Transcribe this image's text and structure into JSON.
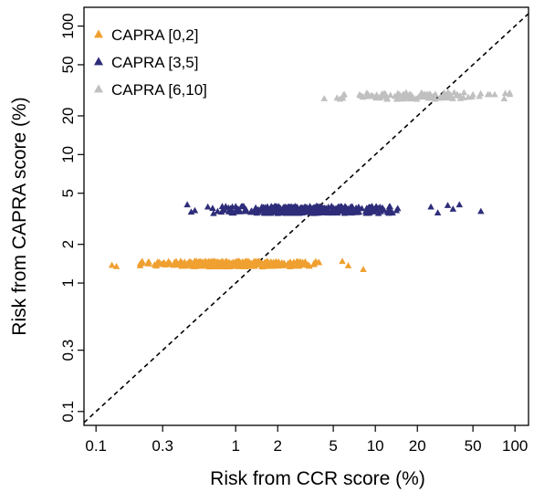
{
  "chart_data": {
    "type": "scatter",
    "xlabel": "Risk from CCR score (%)",
    "ylabel": "Risk from CAPRA score (%)",
    "xscale": "log",
    "yscale": "log",
    "xlim": [
      0.082,
      125
    ],
    "ylim": [
      0.078,
      140
    ],
    "x_ticks": [
      0.1,
      0.3,
      1,
      2,
      5,
      10,
      20,
      50,
      100
    ],
    "x_tick_labels": [
      "0.1",
      "0.3",
      "1",
      "2",
      "5",
      "10",
      "20",
      "50",
      "100"
    ],
    "y_ticks": [
      0.1,
      0.3,
      1,
      2,
      5,
      10,
      20,
      50,
      100
    ],
    "y_tick_labels": [
      "0.1",
      "0.3",
      "1",
      "2",
      "5",
      "10",
      "20",
      "50",
      "100"
    ],
    "reference_line": "y = x (dashed)",
    "legend_position": "top-left",
    "marker": "triangle",
    "series": [
      {
        "name": "CAPRA [0,2]",
        "color": "#F0A030",
        "x_range": [
          0.13,
          8.2
        ],
        "y_range": [
          1.3,
          1.5
        ],
        "y_center": 1.4,
        "dense_x_range": [
          0.2,
          4.0
        ],
        "outliers": [
          [
            0.13,
            1.37
          ],
          [
            0.14,
            1.34
          ],
          [
            5.8,
            1.47
          ],
          [
            6.4,
            1.36
          ],
          [
            8.2,
            1.27
          ]
        ]
      },
      {
        "name": "CAPRA [3,5]",
        "color": "#2E2D7A",
        "x_range": [
          0.45,
          57
        ],
        "y_range": [
          3.4,
          4.1
        ],
        "y_center": 3.7,
        "dense_x_range": [
          0.62,
          15
        ],
        "outliers": [
          [
            0.45,
            4.05
          ],
          [
            0.48,
            3.55
          ],
          [
            0.51,
            3.65
          ],
          [
            25,
            3.9
          ],
          [
            28,
            3.5
          ],
          [
            33,
            4.0
          ],
          [
            36,
            3.75
          ],
          [
            40,
            4.05
          ],
          [
            57,
            3.6
          ]
        ]
      },
      {
        "name": "CAPRA [6,10]",
        "color": "#C0C0C0",
        "x_range": [
          4.2,
          95
        ],
        "y_range": [
          26,
          31
        ],
        "y_center": 28.5,
        "dense_x_range": [
          4.2,
          95
        ],
        "outliers": []
      }
    ]
  }
}
